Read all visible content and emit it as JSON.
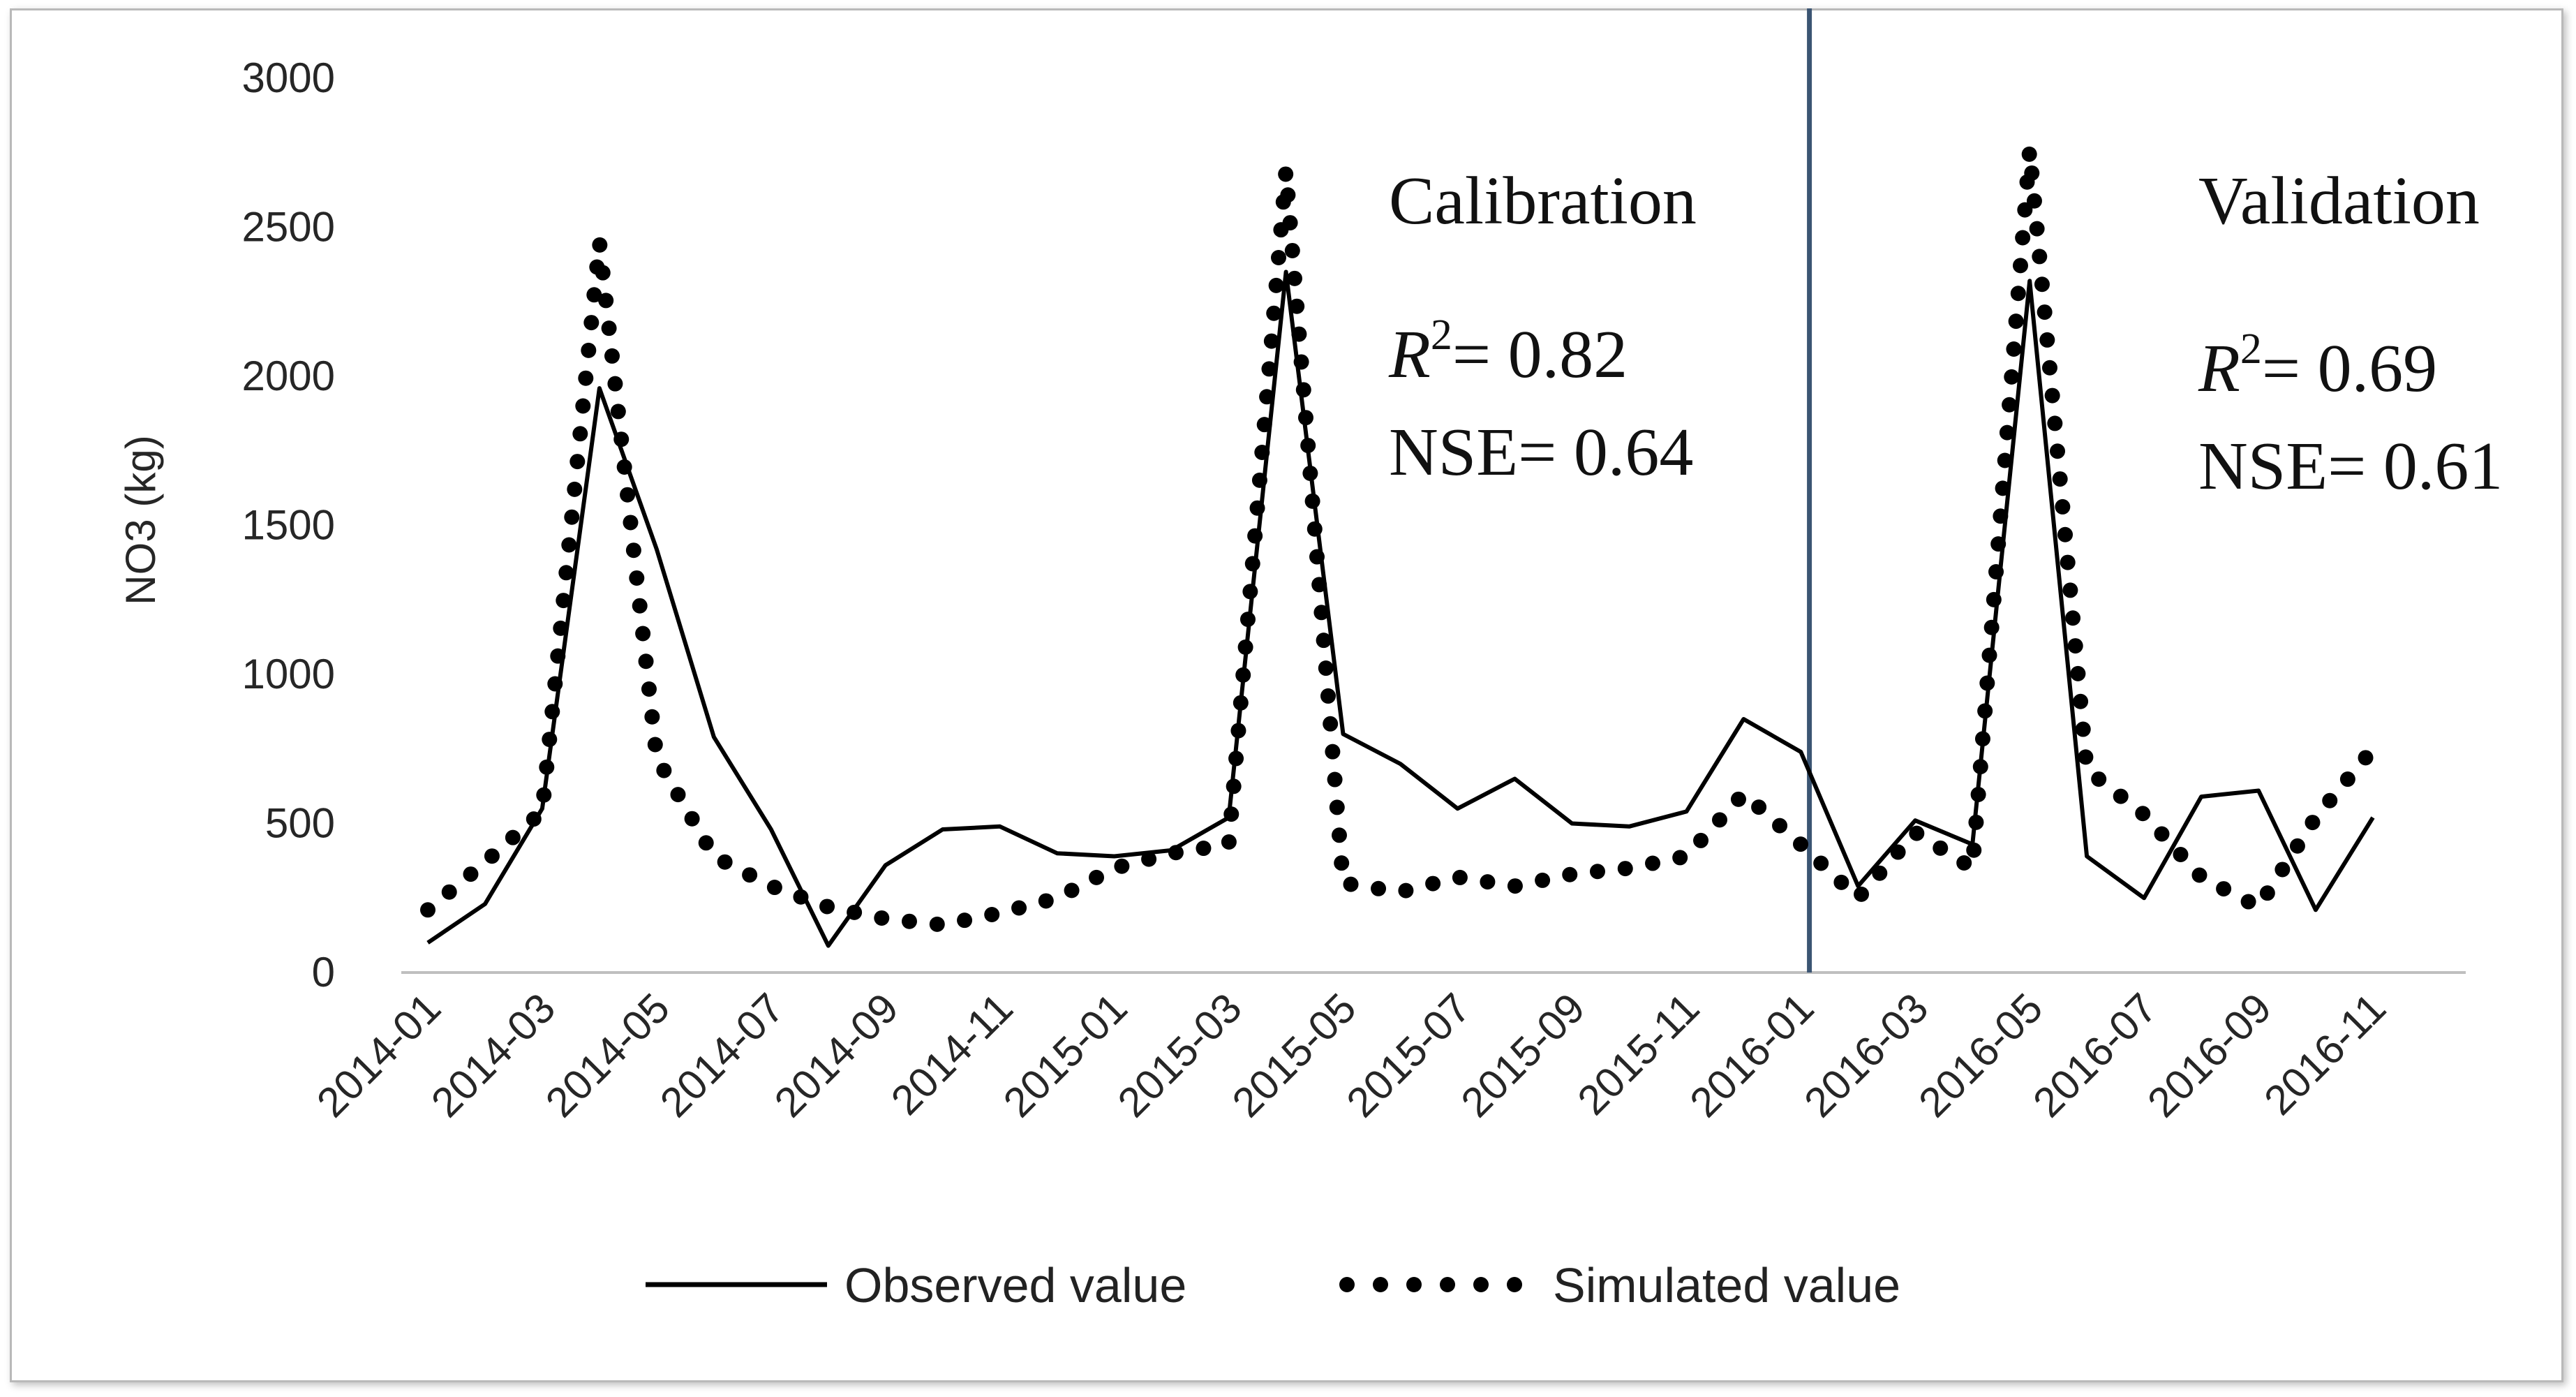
{
  "chart_data": {
    "type": "line",
    "ylabel": "NO3 (kg)",
    "xlabel": "",
    "ylim": [
      0,
      3000
    ],
    "yticks": [
      0,
      500,
      1000,
      1500,
      2000,
      2500,
      3000
    ],
    "months": [
      "2014-01",
      "2014-02",
      "2014-03",
      "2014-04",
      "2014-05",
      "2014-06",
      "2014-07",
      "2014-08",
      "2014-09",
      "2014-10",
      "2014-11",
      "2014-12",
      "2015-01",
      "2015-02",
      "2015-03",
      "2015-04",
      "2015-05",
      "2015-06",
      "2015-07",
      "2015-08",
      "2015-09",
      "2015-10",
      "2015-11",
      "2015-12",
      "2016-01",
      "2016-02",
      "2016-03",
      "2016-04",
      "2016-05",
      "2016-06",
      "2016-07",
      "2016-08",
      "2016-09",
      "2016-10",
      "2016-11"
    ],
    "tick_labels": [
      "2014-01",
      "2014-03",
      "2014-05",
      "2014-07",
      "2014-09",
      "2014-11",
      "2015-01",
      "2015-03",
      "2015-05",
      "2015-07",
      "2015-09",
      "2015-11",
      "2016-01",
      "2016-03",
      "2016-05",
      "2016-07",
      "2016-09",
      "2016-11"
    ],
    "series": [
      {
        "name": "Observed value",
        "style": "solid",
        "values": [
          100,
          230,
          550,
          1960,
          1420,
          790,
          480,
          90,
          360,
          480,
          490,
          400,
          390,
          410,
          520,
          2350,
          800,
          700,
          550,
          650,
          500,
          490,
          540,
          850,
          740,
          290,
          510,
          430,
          2320,
          390,
          250,
          590,
          610,
          210,
          520
        ]
      },
      {
        "name": "Simulated value",
        "style": "dotted",
        "values": [
          210,
          370,
          540,
          2450,
          720,
          390,
          290,
          220,
          180,
          160,
          200,
          250,
          350,
          400,
          430,
          2690,
          300,
          270,
          320,
          290,
          330,
          350,
          390,
          600,
          430,
          250,
          470,
          350,
          2760,
          680,
          530,
          320,
          220,
          520,
          750
        ]
      }
    ],
    "divider_after": "2016-01",
    "annotations": {
      "calibration": {
        "title": "Calibration",
        "r2_label": "R",
        "r2_value": "= 0.82",
        "nse": "NSE= 0.64"
      },
      "validation": {
        "title": "Validation",
        "r2_label": "R",
        "r2_value": "= 0.69",
        "nse": "NSE= 0.61"
      },
      "superscript": "2"
    },
    "legend_position": "bottom-center",
    "colors": {
      "line": "#000000",
      "divider": "#3b5573",
      "axis": "#bfbfbf"
    }
  }
}
